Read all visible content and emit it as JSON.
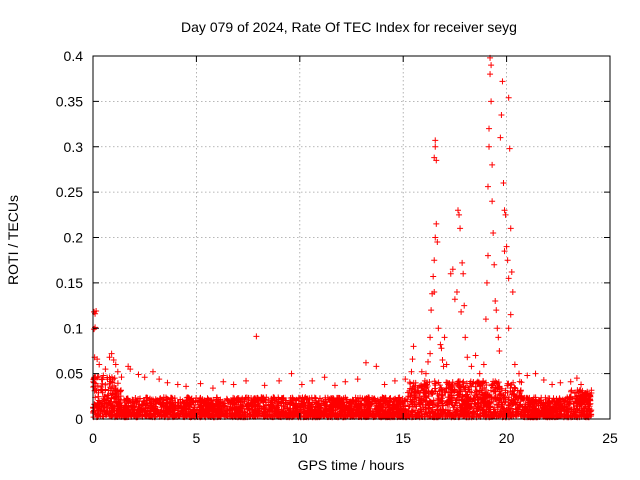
{
  "chart_data": {
    "type": "scatter",
    "title": "Day 079 of 2024, Rate Of TEC Index for receiver seyg",
    "xlabel": "GPS time / hours",
    "ylabel": "ROTI / TECUs",
    "xlim": [
      0,
      25
    ],
    "ylim": [
      0,
      0.4
    ],
    "x_ticks": [
      0,
      5,
      10,
      15,
      20,
      25
    ],
    "y_ticks": [
      0,
      0.05,
      0.1,
      0.15,
      0.2,
      0.25,
      0.3,
      0.35,
      0.4
    ],
    "x_tick_labels": [
      "0",
      "5",
      "10",
      "15",
      "20",
      "25"
    ],
    "y_tick_labels": [
      "0",
      "0.05",
      "0.1",
      "0.15",
      "0.2",
      "0.25",
      "0.3",
      "0.35",
      "0.4"
    ],
    "grid": true,
    "marker": "plus",
    "color": "#ff0000",
    "series": [
      {
        "name": "ROTI",
        "points": [
          [
            0.05,
            0.118
          ],
          [
            0.1,
            0.116
          ],
          [
            0.15,
            0.119
          ],
          [
            0.1,
            0.101
          ],
          [
            0.05,
            0.099
          ],
          [
            0.08,
            0.068
          ],
          [
            0.2,
            0.066
          ],
          [
            0.3,
            0.06
          ],
          [
            0.5,
            0.048
          ],
          [
            0.6,
            0.055
          ],
          [
            0.8,
            0.068
          ],
          [
            0.9,
            0.072
          ],
          [
            1.0,
            0.065
          ],
          [
            1.1,
            0.06
          ],
          [
            1.2,
            0.052
          ],
          [
            1.7,
            0.058
          ],
          [
            1.8,
            0.055
          ],
          [
            2.2,
            0.049
          ],
          [
            2.5,
            0.046
          ],
          [
            2.9,
            0.052
          ],
          [
            3.2,
            0.044
          ],
          [
            3.6,
            0.04
          ],
          [
            4.1,
            0.038
          ],
          [
            4.5,
            0.036
          ],
          [
            5.2,
            0.039
          ],
          [
            5.8,
            0.034
          ],
          [
            6.3,
            0.041
          ],
          [
            6.8,
            0.038
          ],
          [
            7.4,
            0.042
          ],
          [
            7.9,
            0.091
          ],
          [
            8.3,
            0.037
          ],
          [
            9.0,
            0.042
          ],
          [
            9.6,
            0.05
          ],
          [
            10.1,
            0.038
          ],
          [
            10.6,
            0.042
          ],
          [
            11.2,
            0.046
          ],
          [
            11.7,
            0.037
          ],
          [
            12.2,
            0.041
          ],
          [
            12.8,
            0.044
          ],
          [
            13.2,
            0.062
          ],
          [
            13.7,
            0.058
          ],
          [
            14.1,
            0.038
          ],
          [
            14.6,
            0.042
          ],
          [
            15.1,
            0.044
          ],
          [
            15.4,
            0.052
          ],
          [
            15.45,
            0.066
          ],
          [
            15.5,
            0.08
          ],
          [
            15.9,
            0.052
          ],
          [
            16.1,
            0.05
          ],
          [
            16.2,
            0.063
          ],
          [
            16.3,
            0.072
          ],
          [
            16.3,
            0.09
          ],
          [
            16.35,
            0.12
          ],
          [
            16.4,
            0.138
          ],
          [
            16.45,
            0.157
          ],
          [
            16.5,
            0.175
          ],
          [
            16.55,
            0.2
          ],
          [
            16.6,
            0.215
          ],
          [
            16.65,
            0.195
          ],
          [
            16.5,
            0.14
          ],
          [
            16.5,
            0.288
          ],
          [
            16.55,
            0.3
          ],
          [
            16.55,
            0.307
          ],
          [
            16.6,
            0.285
          ],
          [
            16.7,
            0.1
          ],
          [
            16.8,
            0.082
          ],
          [
            16.85,
            0.078
          ],
          [
            16.9,
            0.065
          ],
          [
            16.95,
            0.058
          ],
          [
            17.0,
            0.09
          ],
          [
            17.1,
            0.06
          ],
          [
            17.3,
            0.16
          ],
          [
            17.4,
            0.165
          ],
          [
            17.5,
            0.132
          ],
          [
            17.6,
            0.14
          ],
          [
            17.65,
            0.23
          ],
          [
            17.7,
            0.225
          ],
          [
            17.75,
            0.21
          ],
          [
            17.8,
            0.118
          ],
          [
            17.85,
            0.172
          ],
          [
            17.9,
            0.16
          ],
          [
            17.95,
            0.125
          ],
          [
            18.0,
            0.09
          ],
          [
            18.1,
            0.068
          ],
          [
            18.3,
            0.058
          ],
          [
            18.5,
            0.07
          ],
          [
            18.7,
            0.05
          ],
          [
            18.9,
            0.06
          ],
          [
            19.0,
            0.11
          ],
          [
            19.05,
            0.15
          ],
          [
            19.1,
            0.18
          ],
          [
            19.1,
            0.256
          ],
          [
            19.15,
            0.3
          ],
          [
            19.15,
            0.32
          ],
          [
            19.2,
            0.38
          ],
          [
            19.2,
            0.398
          ],
          [
            19.25,
            0.39
          ],
          [
            19.25,
            0.35
          ],
          [
            19.3,
            0.28
          ],
          [
            19.3,
            0.24
          ],
          [
            19.35,
            0.205
          ],
          [
            19.4,
            0.17
          ],
          [
            19.45,
            0.13
          ],
          [
            19.5,
            0.12
          ],
          [
            19.55,
            0.1
          ],
          [
            19.6,
            0.09
          ],
          [
            19.65,
            0.075
          ],
          [
            19.7,
            0.31
          ],
          [
            19.75,
            0.335
          ],
          [
            19.8,
            0.372
          ],
          [
            19.85,
            0.26
          ],
          [
            19.9,
            0.23
          ],
          [
            19.95,
            0.225
          ],
          [
            19.9,
            0.185
          ],
          [
            20.0,
            0.19
          ],
          [
            20.05,
            0.175
          ],
          [
            20.1,
            0.155
          ],
          [
            20.1,
            0.354
          ],
          [
            20.15,
            0.298
          ],
          [
            20.2,
            0.21
          ],
          [
            20.25,
            0.162
          ],
          [
            20.3,
            0.14
          ],
          [
            20.1,
            0.1
          ],
          [
            20.2,
            0.115
          ],
          [
            20.4,
            0.06
          ],
          [
            20.6,
            0.05
          ],
          [
            21.0,
            0.048
          ],
          [
            21.4,
            0.05
          ],
          [
            21.8,
            0.043
          ],
          [
            22.2,
            0.038
          ],
          [
            22.6,
            0.04
          ],
          [
            23.1,
            0.041
          ],
          [
            23.4,
            0.045
          ],
          [
            23.6,
            0.038
          ],
          [
            23.9,
            0.03
          ]
        ]
      }
    ]
  }
}
